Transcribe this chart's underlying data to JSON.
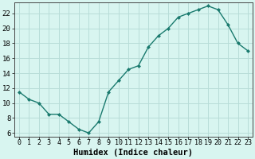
{
  "x": [
    0,
    1,
    2,
    3,
    4,
    5,
    6,
    7,
    8,
    9,
    10,
    11,
    12,
    13,
    14,
    15,
    16,
    17,
    18,
    19,
    20,
    21,
    22,
    23
  ],
  "y": [
    11.5,
    10.5,
    10.0,
    8.5,
    8.5,
    7.5,
    6.5,
    6.0,
    7.5,
    11.5,
    13.0,
    14.5,
    15.0,
    17.5,
    19.0,
    20.0,
    21.5,
    22.0,
    22.5,
    23.0,
    22.5,
    20.5,
    18.0,
    17.0
  ],
  "line_color": "#1a7a6e",
  "marker": "D",
  "marker_size": 2.0,
  "bg_color": "#d8f5f0",
  "grid_color": "#b8ddd8",
  "xlabel": "Humidex (Indice chaleur)",
  "xlim": [
    -0.5,
    23.5
  ],
  "ylim": [
    5.5,
    23.5
  ],
  "yticks": [
    6,
    8,
    10,
    12,
    14,
    16,
    18,
    20,
    22
  ],
  "xticks": [
    0,
    1,
    2,
    3,
    4,
    5,
    6,
    7,
    8,
    9,
    10,
    11,
    12,
    13,
    14,
    15,
    16,
    17,
    18,
    19,
    20,
    21,
    22,
    23
  ],
  "label_fontsize": 7.5,
  "tick_fontsize": 6.0,
  "ytick_fontsize": 6.5,
  "linewidth": 1.0
}
